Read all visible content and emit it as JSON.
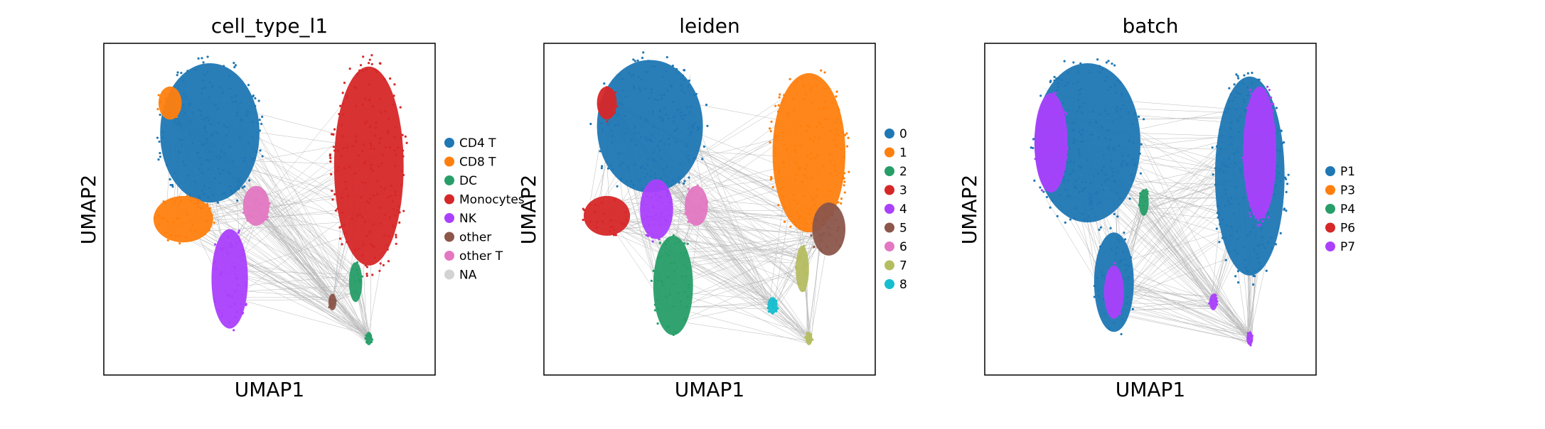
{
  "chart_data": [
    {
      "type": "scatter",
      "title": "cell_type_l1",
      "xlabel": "UMAP1",
      "ylabel": "UMAP2",
      "grid": false,
      "legend": "right",
      "legend_entries": [
        {
          "label": "CD4 T",
          "color": "#1f77b4"
        },
        {
          "label": "CD8 T",
          "color": "#ff7f0e"
        },
        {
          "label": "DC",
          "color": "#279e68"
        },
        {
          "label": "Monocytes",
          "color": "#d62728"
        },
        {
          "label": "NK",
          "color": "#aa40fc"
        },
        {
          "label": "other",
          "color": "#8c564b"
        },
        {
          "label": "other T",
          "color": "#e377c2"
        },
        {
          "label": "NA",
          "color": "#d3d3d3"
        }
      ],
      "clusters": [
        {
          "name": "CD4 T",
          "x": 0.32,
          "y": 0.27,
          "rx": 0.15,
          "ry": 0.21,
          "color": "#1f77b4"
        },
        {
          "name": "CD8 T",
          "x": 0.24,
          "y": 0.53,
          "rx": 0.09,
          "ry": 0.07,
          "color": "#ff7f0e"
        },
        {
          "name": "CD8 T",
          "x": 0.2,
          "y": 0.18,
          "rx": 0.035,
          "ry": 0.05,
          "color": "#ff7f0e"
        },
        {
          "name": "NK",
          "x": 0.38,
          "y": 0.71,
          "rx": 0.055,
          "ry": 0.15,
          "color": "#aa40fc"
        },
        {
          "name": "other T",
          "x": 0.46,
          "y": 0.49,
          "rx": 0.04,
          "ry": 0.06,
          "color": "#e377c2"
        },
        {
          "name": "Monocytes",
          "x": 0.8,
          "y": 0.37,
          "rx": 0.105,
          "ry": 0.3,
          "color": "#d62728"
        },
        {
          "name": "DC",
          "x": 0.76,
          "y": 0.72,
          "rx": 0.02,
          "ry": 0.06,
          "color": "#279e68"
        },
        {
          "name": "DC",
          "x": 0.8,
          "y": 0.89,
          "rx": 0.01,
          "ry": 0.02,
          "color": "#279e68"
        },
        {
          "name": "other",
          "x": 0.69,
          "y": 0.78,
          "rx": 0.012,
          "ry": 0.025,
          "color": "#8c564b"
        }
      ]
    },
    {
      "type": "scatter",
      "title": "leiden",
      "xlabel": "UMAP1",
      "ylabel": "UMAP2",
      "grid": false,
      "legend": "right",
      "legend_entries": [
        {
          "label": "0",
          "color": "#1f77b4"
        },
        {
          "label": "1",
          "color": "#ff7f0e"
        },
        {
          "label": "2",
          "color": "#279e68"
        },
        {
          "label": "3",
          "color": "#d62728"
        },
        {
          "label": "4",
          "color": "#aa40fc"
        },
        {
          "label": "5",
          "color": "#8c564b"
        },
        {
          "label": "6",
          "color": "#e377c2"
        },
        {
          "label": "7",
          "color": "#b5bd61"
        },
        {
          "label": "8",
          "color": "#17becf"
        }
      ],
      "clusters": [
        {
          "name": "0",
          "x": 0.32,
          "y": 0.25,
          "rx": 0.16,
          "ry": 0.2,
          "color": "#1f77b4"
        },
        {
          "name": "3",
          "x": 0.19,
          "y": 0.52,
          "rx": 0.07,
          "ry": 0.06,
          "color": "#d62728"
        },
        {
          "name": "3",
          "x": 0.19,
          "y": 0.18,
          "rx": 0.03,
          "ry": 0.05,
          "color": "#d62728"
        },
        {
          "name": "4",
          "x": 0.34,
          "y": 0.5,
          "rx": 0.05,
          "ry": 0.09,
          "color": "#aa40fc"
        },
        {
          "name": "6",
          "x": 0.46,
          "y": 0.49,
          "rx": 0.035,
          "ry": 0.06,
          "color": "#e377c2"
        },
        {
          "name": "2",
          "x": 0.39,
          "y": 0.73,
          "rx": 0.06,
          "ry": 0.15,
          "color": "#279e68"
        },
        {
          "name": "1",
          "x": 0.8,
          "y": 0.33,
          "rx": 0.11,
          "ry": 0.24,
          "color": "#ff7f0e"
        },
        {
          "name": "5",
          "x": 0.86,
          "y": 0.56,
          "rx": 0.05,
          "ry": 0.08,
          "color": "#8c564b"
        },
        {
          "name": "7",
          "x": 0.78,
          "y": 0.68,
          "rx": 0.02,
          "ry": 0.07,
          "color": "#b5bd61"
        },
        {
          "name": "7",
          "x": 0.8,
          "y": 0.89,
          "rx": 0.01,
          "ry": 0.02,
          "color": "#b5bd61"
        },
        {
          "name": "8",
          "x": 0.69,
          "y": 0.79,
          "rx": 0.015,
          "ry": 0.025,
          "color": "#17becf"
        }
      ]
    },
    {
      "type": "scatter",
      "title": "batch",
      "xlabel": "UMAP1",
      "ylabel": "UMAP2",
      "grid": false,
      "legend": "right",
      "legend_entries": [
        {
          "label": "P1",
          "color": "#1f77b4"
        },
        {
          "label": "P3",
          "color": "#ff7f0e"
        },
        {
          "label": "P4",
          "color": "#279e68"
        },
        {
          "label": "P6",
          "color": "#d62728"
        },
        {
          "label": "P7",
          "color": "#aa40fc"
        }
      ],
      "clusters": [
        {
          "name": "P1",
          "x": 0.31,
          "y": 0.3,
          "rx": 0.16,
          "ry": 0.24,
          "color": "#1f77b4"
        },
        {
          "name": "P7",
          "x": 0.2,
          "y": 0.3,
          "rx": 0.05,
          "ry": 0.15,
          "color": "#aa40fc"
        },
        {
          "name": "P1",
          "x": 0.39,
          "y": 0.72,
          "rx": 0.06,
          "ry": 0.15,
          "color": "#1f77b4"
        },
        {
          "name": "P7",
          "x": 0.39,
          "y": 0.75,
          "rx": 0.03,
          "ry": 0.08,
          "color": "#aa40fc"
        },
        {
          "name": "P1",
          "x": 0.8,
          "y": 0.4,
          "rx": 0.105,
          "ry": 0.3,
          "color": "#1f77b4"
        },
        {
          "name": "P7",
          "x": 0.83,
          "y": 0.33,
          "rx": 0.05,
          "ry": 0.2,
          "color": "#aa40fc"
        },
        {
          "name": "P4",
          "x": 0.48,
          "y": 0.48,
          "rx": 0.015,
          "ry": 0.04,
          "color": "#279e68"
        },
        {
          "name": "P7",
          "x": 0.69,
          "y": 0.78,
          "rx": 0.012,
          "ry": 0.025,
          "color": "#aa40fc"
        },
        {
          "name": "P7",
          "x": 0.8,
          "y": 0.89,
          "rx": 0.01,
          "ry": 0.02,
          "color": "#aa40fc"
        }
      ]
    }
  ],
  "edge_color": "#808080"
}
